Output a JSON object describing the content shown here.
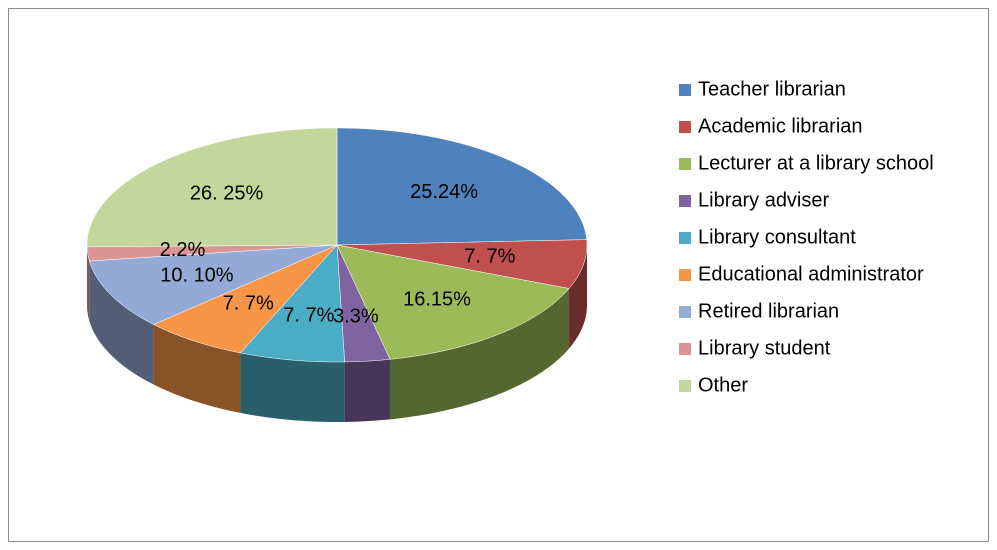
{
  "chart_data": {
    "type": "pie",
    "categories": [
      "Teacher librarian",
      "Academic librarian",
      "Lecturer at a library school",
      "Library adviser",
      "Library consultant",
      "Educational administrator",
      "Retired librarian",
      "Library student",
      "Other"
    ],
    "values": [
      25,
      7,
      16,
      3,
      7,
      7,
      10,
      2,
      26
    ],
    "value_labels": [
      "25.24%",
      "7. 7%",
      "16.15%",
      "3.3%",
      "7. 7%",
      "7. 7%",
      "10. 10%",
      "2.2%",
      "26. 25%"
    ],
    "colors": [
      "#4f81bd",
      "#c0504d",
      "#9bbb59",
      "#8064a2",
      "#4bacc6",
      "#f79646",
      "#94aad6",
      "#d99694",
      "#c3d69b"
    ],
    "legend": "right"
  }
}
